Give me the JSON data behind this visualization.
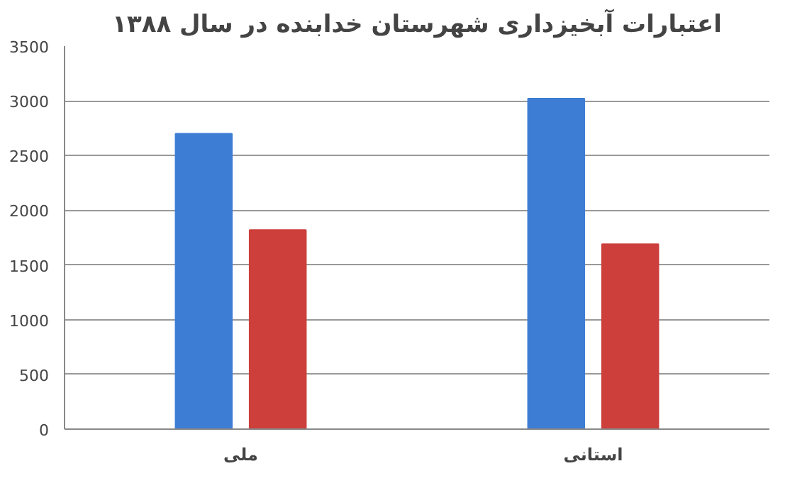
{
  "chart_data": {
    "type": "bar",
    "title": "اعتبارات آبخیزداری شهرستان خدابنده در سال ۱۳۸۸",
    "categories": [
      "ملی",
      "استانی"
    ],
    "series": [
      {
        "color": "#3d7dd4",
        "values": [
          2700,
          3020
        ]
      },
      {
        "color": "#cc3f3b",
        "values": [
          1820,
          1690
        ]
      }
    ],
    "ylim": [
      0,
      3500
    ],
    "yticks": [
      0,
      500,
      1000,
      1500,
      2000,
      2500,
      3000,
      3500
    ],
    "grid": "y"
  }
}
